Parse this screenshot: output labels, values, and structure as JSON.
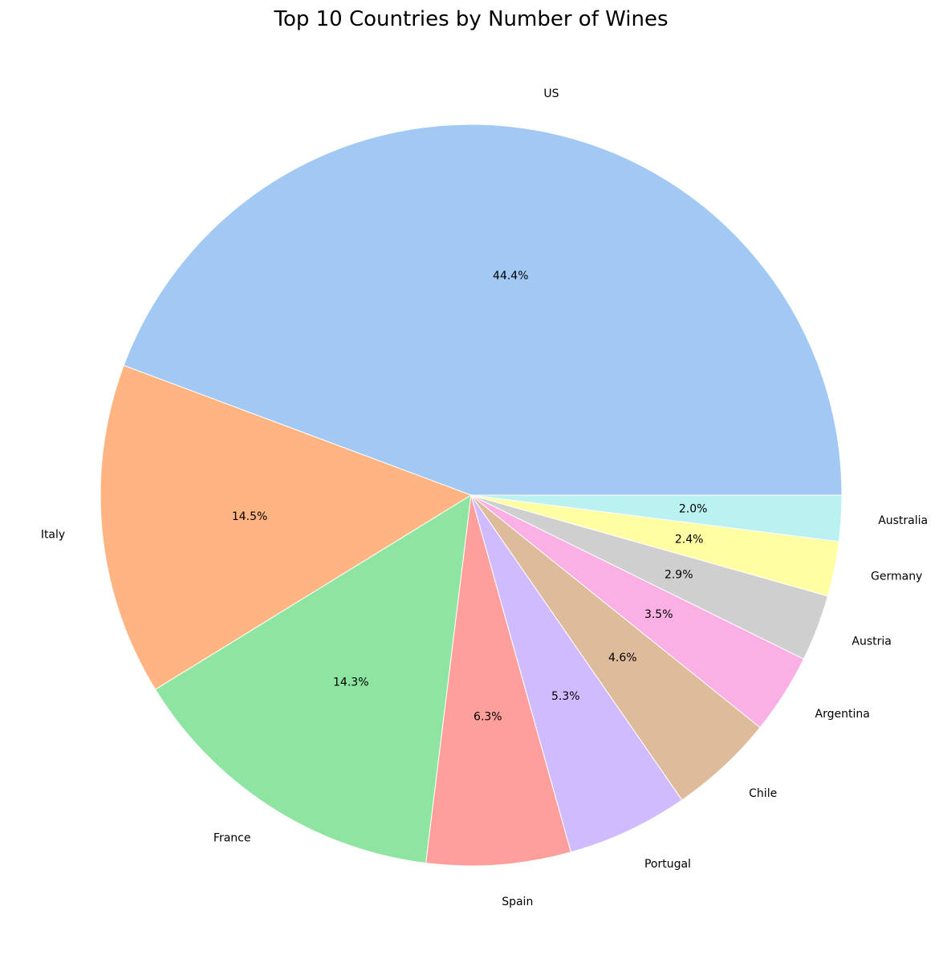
{
  "chart_data": {
    "type": "pie",
    "title": "Top 10 Countries by Number of Wines",
    "start_angle_deg": 0,
    "direction": "counterclockwise",
    "slices": [
      {
        "label": "US",
        "value": 44.4,
        "pct_label": "44.4%",
        "color": "#a1c9f4"
      },
      {
        "label": "Italy",
        "value": 14.5,
        "pct_label": "14.5%",
        "color": "#ffb482"
      },
      {
        "label": "France",
        "value": 14.3,
        "pct_label": "14.3%",
        "color": "#8de5a1"
      },
      {
        "label": "Spain",
        "value": 6.3,
        "pct_label": "6.3%",
        "color": "#ff9f9b"
      },
      {
        "label": "Portugal",
        "value": 5.3,
        "pct_label": "5.3%",
        "color": "#d0bbff"
      },
      {
        "label": "Chile",
        "value": 4.6,
        "pct_label": "4.6%",
        "color": "#debb9b"
      },
      {
        "label": "Argentina",
        "value": 3.5,
        "pct_label": "3.5%",
        "color": "#fab0e4"
      },
      {
        "label": "Austria",
        "value": 2.9,
        "pct_label": "2.9%",
        "color": "#cfcfcf"
      },
      {
        "label": "Germany",
        "value": 2.4,
        "pct_label": "2.4%",
        "color": "#fffea3"
      },
      {
        "label": "Australia",
        "value": 2.0,
        "pct_label": "2.0%",
        "color": "#b9f2f0"
      }
    ]
  }
}
